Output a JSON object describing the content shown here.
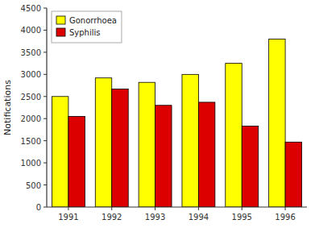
{
  "chart_data": {
    "type": "bar",
    "categories": [
      "1991",
      "1992",
      "1993",
      "1994",
      "1995",
      "1996"
    ],
    "series": [
      {
        "name": "Gonorrhoea",
        "color": "#ffff00",
        "values": [
          2500,
          2920,
          2820,
          3000,
          3250,
          3800
        ]
      },
      {
        "name": "Syphilis",
        "color": "#dd0000",
        "values": [
          2050,
          2670,
          2300,
          2370,
          1830,
          1470
        ]
      }
    ],
    "y_label": "Notifications",
    "ylim": [
      0,
      4500
    ],
    "yticks": [
      0,
      500,
      1000,
      1500,
      2000,
      2500,
      3000,
      3500,
      4000,
      4500
    ],
    "grid": false,
    "legend": "upper left"
  }
}
